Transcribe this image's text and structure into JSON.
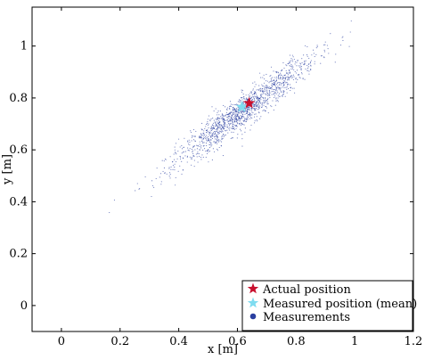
{
  "chart_data": {
    "type": "scatter",
    "title": "",
    "xlabel": "x [m]",
    "ylabel": "y [m]",
    "xlim": [
      -0.1,
      1.2
    ],
    "ylim": [
      -0.1,
      1.15
    ],
    "xticks": [
      0,
      0.2,
      0.4,
      0.6,
      0.8,
      1,
      1.2
    ],
    "xtick_labels": [
      "0",
      "0.2",
      "0.4",
      "0.6",
      "0.8",
      "1",
      "1.2"
    ],
    "yticks": [
      0,
      0.2,
      0.4,
      0.6,
      0.8,
      1
    ],
    "ytick_labels": [
      "0",
      "0.2",
      "0.4",
      "0.6",
      "0.8",
      "1"
    ],
    "grid": false,
    "legend_position": "bottom-right",
    "series": [
      {
        "name": "Actual position",
        "marker": "star",
        "color": "#c8102e",
        "points": [
          {
            "x": 0.64,
            "y": 0.78
          }
        ]
      },
      {
        "name": "Measured position (mean)",
        "marker": "star",
        "color": "#7fdcf0",
        "points": [
          {
            "x": 0.615,
            "y": 0.765
          }
        ]
      },
      {
        "name": "Measurements",
        "marker": "dot",
        "color": "#2a3fa0",
        "distribution": {
          "count": 1400,
          "mean": [
            0.62,
            0.75
          ],
          "major_axis_std": 0.16,
          "minor_axis_std": 0.025,
          "major_axis_angle_deg": 41
        }
      }
    ]
  }
}
